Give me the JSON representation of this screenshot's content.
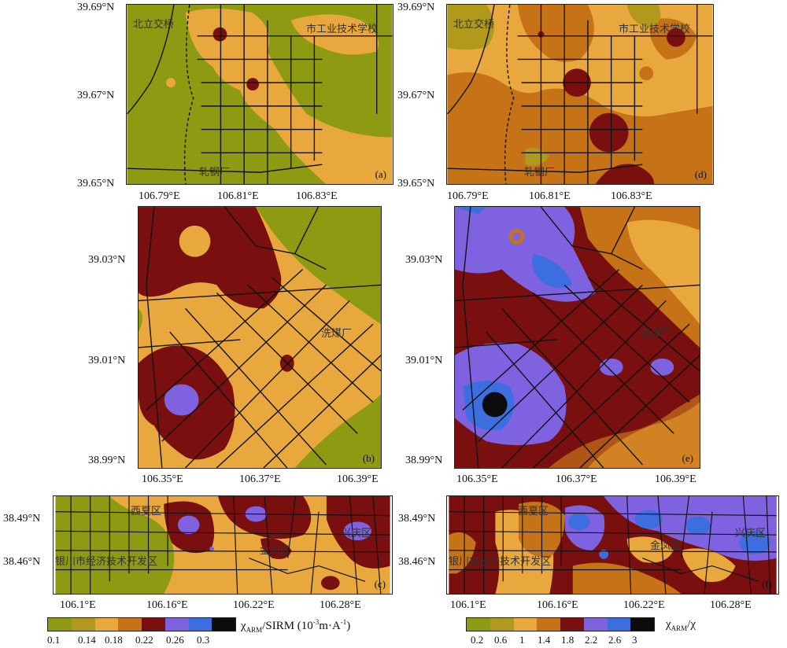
{
  "panels": {
    "a": {
      "label": "(a)",
      "lat_ticks": [
        "39.69°N",
        "39.67°N",
        "39.65°N"
      ],
      "lon_ticks": [
        "106.79°E",
        "106.81°E",
        "106.83°E"
      ],
      "places": [
        "北立交桥",
        "市工业技术学校",
        "轧钢厂"
      ]
    },
    "b": {
      "label": "(b)",
      "lat_ticks": [
        "39.03°N",
        "39.01°N",
        "38.99°N"
      ],
      "lon_ticks": [
        "106.35°E",
        "106.37°E",
        "106.39°E"
      ],
      "places": [
        "洗煤厂"
      ]
    },
    "c": {
      "label": "(c)",
      "lat_ticks": [
        "38.49°N",
        "38.46°N"
      ],
      "lon_ticks": [
        "106.1°E",
        "106.16°E",
        "106.22°E",
        "106.28°E"
      ],
      "places": [
        "西夏区",
        "金凤区",
        "兴庆区",
        "银川市经济技术开发区"
      ]
    },
    "d": {
      "label": "(d)",
      "lat_ticks": [
        "39.69°N",
        "39.67°N",
        "39.65°N"
      ],
      "lon_ticks": [
        "106.79°E",
        "106.81°E",
        "106.83°E"
      ],
      "places": [
        "北立交桥",
        "市工业技术学校",
        "轧钢厂"
      ]
    },
    "e": {
      "label": "(e)",
      "lat_ticks": [
        "39.03°N",
        "39.01°N",
        "38.99°N"
      ],
      "lon_ticks": [
        "106.35°E",
        "106.37°E",
        "106.39°E"
      ],
      "places": [
        "洗煤厂"
      ]
    },
    "f": {
      "label": "(f)",
      "lat_ticks": [
        "38.49°N",
        "38.46°N"
      ],
      "lon_ticks": [
        "106.1°E",
        "106.16°E",
        "106.22°E",
        "106.28°E"
      ],
      "places": [
        "西夏区",
        "金凤区",
        "兴庆区",
        "银川市经济技术开发区"
      ]
    }
  },
  "legend_left": {
    "title_main": "χ",
    "title_sub": "ARM",
    "title_rest": "/SIRM (10",
    "title_sup": "-3",
    "title_end": "m·A",
    "title_sup2": "-1",
    "title_close": ")",
    "ticks": [
      "0.1",
      "0.14",
      "0.18",
      "0.22",
      "0.26",
      "0.3"
    ],
    "colors": [
      "#8e9a12",
      "#b19a1b",
      "#e9a83d",
      "#c67318",
      "#7a0f0f",
      "#7e62e0",
      "#3d6ee0",
      "#0c0c0c"
    ]
  },
  "legend_right": {
    "title_main": "χ",
    "title_sub": "ARM",
    "title_rest": "/χ",
    "ticks": [
      "0.2",
      "0.6",
      "1",
      "1.4",
      "1.8",
      "2.2",
      "2.6",
      "3"
    ],
    "colors": [
      "#8e9a12",
      "#b19a1b",
      "#e9a83d",
      "#c67318",
      "#7a0f0f",
      "#7e62e0",
      "#3d6ee0",
      "#0c0c0c"
    ]
  }
}
